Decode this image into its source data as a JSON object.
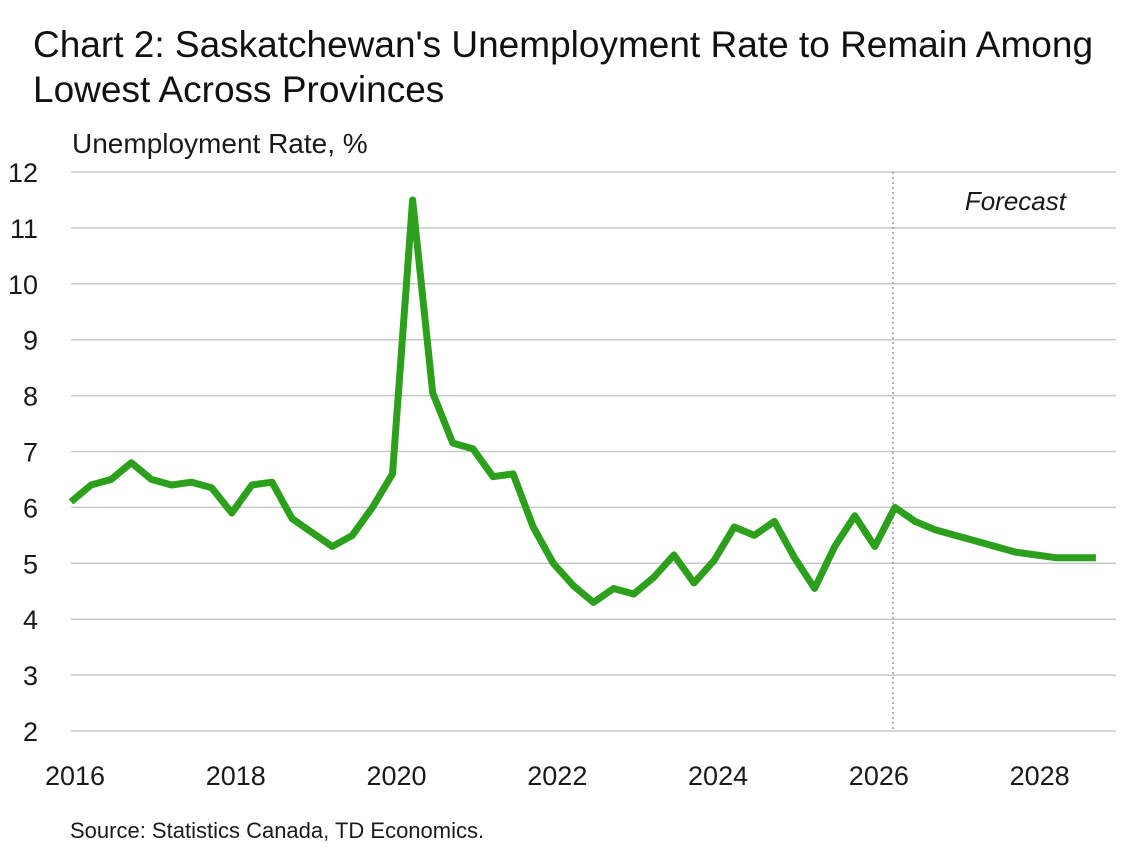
{
  "title": "Chart 2: Saskatchewan's Unemployment Rate to Remain Among Lowest Across Provinces",
  "source": "Source: Statistics Canada, TD Economics.",
  "chart_data": {
    "type": "line",
    "title": "Chart 2: Saskatchewan's Unemployment Rate to Remain Among Lowest Across Provinces",
    "ylabel": "Unemployment Rate, %",
    "xlabel": "",
    "ylim": [
      2,
      12
    ],
    "yticks": [
      2,
      3,
      4,
      5,
      6,
      7,
      8,
      9,
      10,
      11,
      12
    ],
    "xticks": [
      2016,
      2018,
      2020,
      2022,
      2024,
      2026,
      2028
    ],
    "grid": "horizontal",
    "line_color": "#2ca01c",
    "forecast": {
      "label": "Forecast",
      "start": "2026Q2"
    },
    "x": [
      "2016Q1",
      "2016Q2",
      "2016Q3",
      "2016Q4",
      "2017Q1",
      "2017Q2",
      "2017Q3",
      "2017Q4",
      "2018Q1",
      "2018Q2",
      "2018Q3",
      "2018Q4",
      "2019Q1",
      "2019Q2",
      "2019Q3",
      "2019Q4",
      "2020Q1",
      "2020Q2",
      "2020Q3",
      "2020Q4",
      "2021Q1",
      "2021Q2",
      "2021Q3",
      "2021Q4",
      "2022Q1",
      "2022Q2",
      "2022Q3",
      "2022Q4",
      "2023Q1",
      "2023Q2",
      "2023Q3",
      "2023Q4",
      "2024Q1",
      "2024Q2",
      "2024Q3",
      "2024Q4",
      "2025Q1",
      "2025Q2",
      "2025Q3",
      "2025Q4",
      "2026Q1",
      "2026Q2",
      "2026Q3",
      "2026Q4",
      "2027Q1",
      "2027Q2",
      "2027Q3",
      "2027Q4",
      "2028Q1",
      "2028Q2",
      "2028Q3",
      "2028Q4"
    ],
    "series": [
      {
        "values": [
          6.1,
          6.4,
          6.5,
          6.8,
          6.5,
          6.4,
          6.45,
          6.35,
          5.9,
          6.4,
          6.45,
          5.8,
          5.55,
          5.3,
          5.5,
          6.0,
          6.6,
          11.5,
          8.05,
          7.15,
          7.05,
          6.55,
          6.6,
          5.65,
          5.0,
          4.6,
          4.3,
          4.55,
          4.45,
          4.75,
          5.15,
          4.65,
          5.05,
          5.65,
          5.5,
          5.75,
          5.1,
          4.55,
          5.3,
          5.85,
          5.3,
          6.0,
          5.75,
          5.6,
          5.5,
          5.4,
          5.3,
          5.2,
          5.15,
          5.1,
          5.1,
          5.1
        ]
      }
    ]
  }
}
